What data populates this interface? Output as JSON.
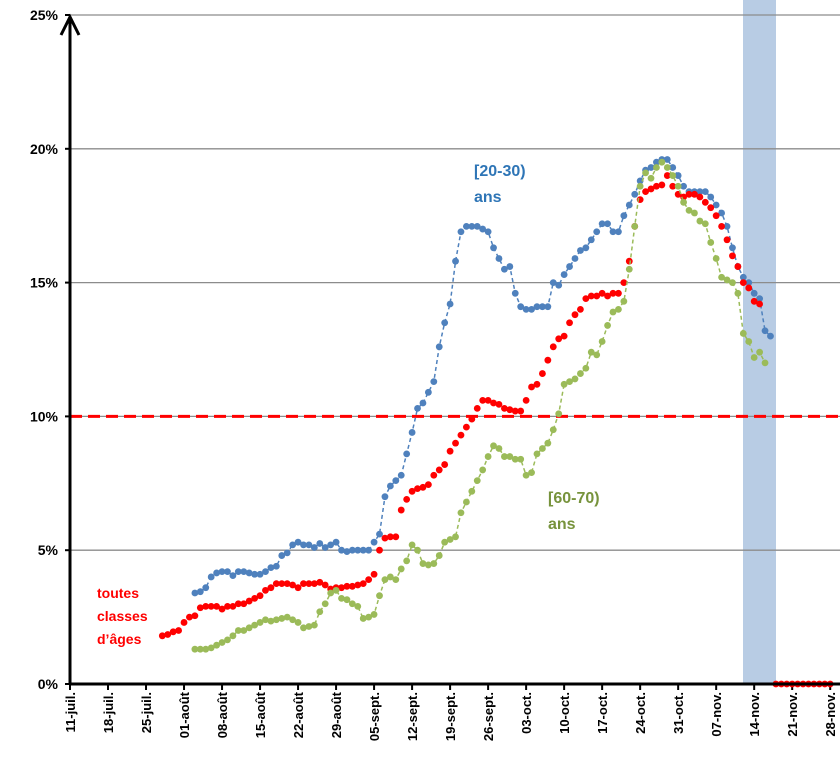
{
  "chart_data": {
    "type": "scatter-line",
    "categories": [
      "11-juil.",
      null,
      null,
      null,
      null,
      null,
      null,
      "18-juil.",
      null,
      null,
      null,
      null,
      null,
      null,
      "25-juil.",
      null,
      null,
      null,
      null,
      null,
      null,
      "01-août",
      null,
      null,
      null,
      null,
      null,
      null,
      "08-août",
      null,
      null,
      null,
      null,
      null,
      null,
      "15-août",
      null,
      null,
      null,
      null,
      null,
      null,
      "22-août",
      null,
      null,
      null,
      null,
      null,
      null,
      "29-août",
      null,
      null,
      null,
      null,
      null,
      null,
      "05-sept.",
      null,
      null,
      null,
      null,
      null,
      null,
      "12-sept.",
      null,
      null,
      null,
      null,
      null,
      null,
      "19-sept.",
      null,
      null,
      null,
      null,
      null,
      null,
      "26-sept.",
      null,
      null,
      null,
      null,
      null,
      null,
      "03-oct.",
      null,
      null,
      null,
      null,
      null,
      null,
      "10-oct.",
      null,
      null,
      null,
      null,
      null,
      null,
      "17-oct.",
      null,
      null,
      null,
      null,
      null,
      null,
      "24-oct.",
      null,
      null,
      null,
      null,
      null,
      null,
      "31-oct.",
      null,
      null,
      null,
      null,
      null,
      null,
      "07-nov.",
      null,
      null,
      null,
      null,
      null,
      null,
      "14-nov.",
      null,
      null,
      null,
      null,
      null,
      null,
      "21-nov.",
      null,
      null,
      null,
      null,
      null,
      null,
      "28-nov."
    ],
    "series": [
      {
        "name": "[20-30) ans",
        "color": "#4f81bd",
        "connect": true,
        "values": [
          null,
          null,
          null,
          null,
          null,
          null,
          null,
          null,
          null,
          null,
          null,
          null,
          null,
          null,
          null,
          null,
          null,
          null,
          null,
          null,
          null,
          null,
          null,
          3.4,
          3.45,
          3.6,
          4.0,
          4.15,
          4.2,
          4.2,
          4.05,
          4.2,
          4.2,
          4.15,
          4.1,
          4.1,
          4.2,
          4.35,
          4.4,
          4.8,
          4.9,
          5.2,
          5.3,
          5.2,
          5.2,
          5.1,
          5.25,
          5.1,
          5.2,
          5.3,
          5.0,
          4.95,
          5.0,
          5.0,
          5.0,
          5.0,
          5.3,
          5.6,
          7.0,
          7.4,
          7.6,
          7.8,
          8.6,
          9.4,
          10.3,
          10.5,
          10.9,
          11.3,
          12.6,
          13.5,
          14.2,
          15.8,
          16.9,
          17.1,
          17.1,
          17.1,
          17.0,
          16.9,
          16.3,
          15.9,
          15.5,
          15.6,
          14.6,
          14.1,
          14.0,
          14.0,
          14.1,
          14.1,
          14.1,
          15.0,
          14.9,
          15.3,
          15.6,
          15.9,
          16.2,
          16.3,
          16.6,
          16.9,
          17.2,
          17.2,
          16.9,
          16.9,
          17.5,
          17.9,
          18.3,
          18.8,
          19.2,
          19.3,
          19.5,
          19.6,
          19.6,
          19.3,
          19.0,
          18.6,
          18.4,
          18.4,
          18.4,
          18.4,
          18.2,
          17.9,
          17.6,
          17.1,
          16.3,
          15.6,
          15.2,
          15.0,
          14.6,
          14.4,
          13.2,
          13.0,
          null,
          null,
          null,
          null,
          null,
          null,
          null,
          null,
          null,
          null,
          null
        ]
      },
      {
        "name": "toutes classes d’âges",
        "color": "#ff0000",
        "connect": false,
        "values": [
          null,
          null,
          null,
          null,
          null,
          null,
          null,
          null,
          null,
          null,
          null,
          null,
          null,
          null,
          null,
          null,
          null,
          1.8,
          1.85,
          1.95,
          2.0,
          2.3,
          2.5,
          2.55,
          2.85,
          2.9,
          2.9,
          2.9,
          2.8,
          2.9,
          2.9,
          3.0,
          3.0,
          3.1,
          3.2,
          3.3,
          3.5,
          3.6,
          3.75,
          3.75,
          3.75,
          3.7,
          3.6,
          3.75,
          3.75,
          3.75,
          3.8,
          3.7,
          3.55,
          3.6,
          3.6,
          3.65,
          3.65,
          3.7,
          3.75,
          3.9,
          4.1,
          5.0,
          5.45,
          5.5,
          5.5,
          6.5,
          6.9,
          7.2,
          7.3,
          7.35,
          7.45,
          7.8,
          8.0,
          8.2,
          8.7,
          9.0,
          9.3,
          9.6,
          9.9,
          10.3,
          10.6,
          10.6,
          10.5,
          10.45,
          10.3,
          10.25,
          10.2,
          10.2,
          10.6,
          11.1,
          11.2,
          11.6,
          12.1,
          12.6,
          12.9,
          13.0,
          13.5,
          13.8,
          14.0,
          14.4,
          14.5,
          14.5,
          14.6,
          14.5,
          14.6,
          14.6,
          15.0,
          15.8,
          17.1,
          18.1,
          18.4,
          18.5,
          18.6,
          18.65,
          19.0,
          18.6,
          18.3,
          18.2,
          18.3,
          18.3,
          18.2,
          18.0,
          17.8,
          17.5,
          17.1,
          16.6,
          16.0,
          15.6,
          15.0,
          14.8,
          14.3,
          14.2,
          null,
          null,
          0,
          0,
          0,
          0,
          0,
          0,
          0,
          0,
          0,
          0,
          0
        ]
      },
      {
        "name": "[60-70) ans",
        "color": "#9bbb59",
        "connect": true,
        "values": [
          null,
          null,
          null,
          null,
          null,
          null,
          null,
          null,
          null,
          null,
          null,
          null,
          null,
          null,
          null,
          null,
          null,
          null,
          null,
          null,
          null,
          null,
          null,
          1.3,
          1.3,
          1.3,
          1.35,
          1.45,
          1.55,
          1.65,
          1.8,
          2.0,
          2.0,
          2.1,
          2.2,
          2.3,
          2.4,
          2.35,
          2.4,
          2.45,
          2.5,
          2.4,
          2.3,
          2.1,
          2.15,
          2.2,
          2.7,
          3.0,
          3.4,
          3.5,
          3.2,
          3.15,
          3.0,
          2.9,
          2.45,
          2.5,
          2.6,
          3.3,
          3.9,
          4.0,
          3.9,
          4.3,
          4.6,
          5.2,
          5.0,
          4.5,
          4.45,
          4.5,
          4.8,
          5.3,
          5.4,
          5.5,
          6.4,
          6.8,
          7.2,
          7.6,
          8.0,
          8.5,
          8.9,
          8.8,
          8.5,
          8.5,
          8.4,
          8.4,
          7.8,
          7.9,
          8.6,
          8.8,
          9.0,
          9.5,
          10.1,
          11.2,
          11.3,
          11.4,
          11.6,
          11.8,
          12.4,
          12.3,
          12.8,
          13.4,
          13.9,
          14.0,
          14.3,
          15.5,
          17.1,
          18.6,
          19.1,
          18.9,
          19.3,
          19.5,
          19.3,
          19.0,
          18.6,
          18.0,
          17.7,
          17.6,
          17.3,
          17.2,
          16.5,
          15.9,
          15.2,
          15.1,
          15.0,
          14.6,
          13.1,
          12.8,
          12.2,
          12.4,
          12.0,
          null,
          null,
          null,
          null,
          null,
          null,
          null,
          null,
          null,
          null,
          null,
          null
        ]
      }
    ],
    "annotations": [
      {
        "lines": [
          "[20-30)",
          "ans"
        ],
        "color": "#2e75b6"
      },
      {
        "lines": [
          "[60-70)",
          "ans"
        ],
        "color": "#77933c"
      },
      {
        "lines": [
          "toutes",
          "classes",
          "d’âges"
        ],
        "color": "#ff0000"
      }
    ],
    "reference_line": {
      "value": 10,
      "color": "#ff0000"
    },
    "ylim": [
      0,
      25
    ],
    "yticks": [
      {
        "value": 0,
        "label": "0%"
      },
      {
        "value": 5,
        "label": "5%"
      },
      {
        "value": 10,
        "label": "10%"
      },
      {
        "value": 15,
        "label": "15%"
      },
      {
        "value": 20,
        "label": "20%"
      },
      {
        "value": 25,
        "label": "25%"
      }
    ],
    "grid": true
  }
}
